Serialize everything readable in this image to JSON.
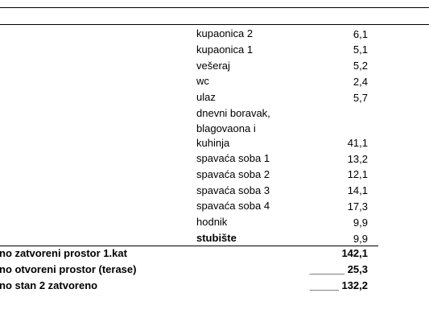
{
  "rooms": [
    {
      "name": "kupaonica 2",
      "area": "6,1"
    },
    {
      "name": "kupaonica 1",
      "area": "5,1"
    },
    {
      "name": "vešeraj",
      "area": "5,2"
    },
    {
      "name": "wc",
      "area": "2,4"
    },
    {
      "name": "ulaz",
      "area": "5,7"
    },
    {
      "name": "dnevni boravak, blagovaona i kuhinja",
      "area": "41,1"
    },
    {
      "name": "spavaća soba 1",
      "area": "13,2"
    },
    {
      "name": "spavaća soba 2",
      "area": "12,1"
    },
    {
      "name": "spavaća soba 3",
      "area": "14,1"
    },
    {
      "name": "spavaća soba 4",
      "area": "17,3"
    },
    {
      "name": "hodnik",
      "area": "9,9"
    },
    {
      "name": "stubište",
      "area": "9,9"
    }
  ],
  "totals": [
    {
      "label": "no zatvoreni prostor 1.kat",
      "value": "142,1"
    },
    {
      "label": "no otvoreni prostor (terase)",
      "value": "______ 25,3"
    },
    {
      "label": "no stan 2 zatvoreno",
      "value": "_____ 132,2"
    }
  ]
}
